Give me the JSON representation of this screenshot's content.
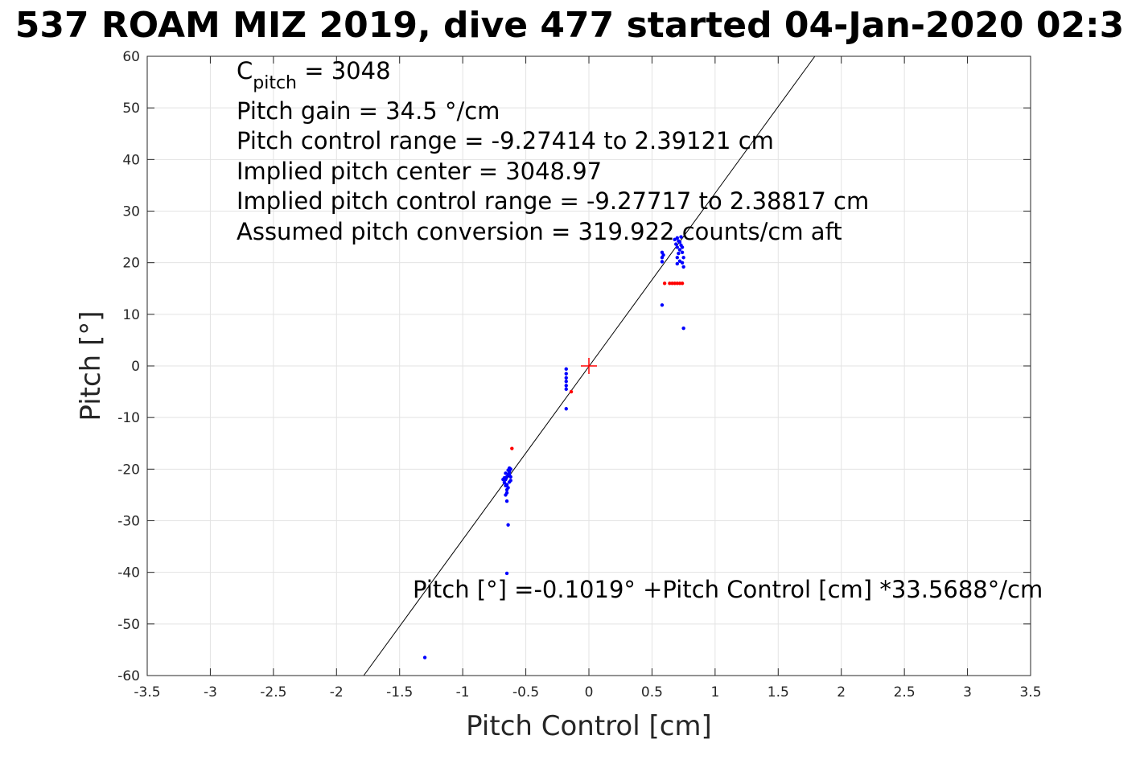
{
  "chart_data": {
    "type": "scatter",
    "title": "537 ROAM MIZ 2019, dive 477 started 04-Jan-2020 02:3",
    "xlabel": "Pitch Control [cm]",
    "ylabel": "Pitch [°]",
    "xlim": [
      -3.5,
      3.5
    ],
    "ylim": [
      -60,
      60
    ],
    "xticks": [
      -3.5,
      -3,
      -2.5,
      -2,
      -1.5,
      -1,
      -0.5,
      0,
      0.5,
      1,
      1.5,
      2,
      2.5,
      3,
      3.5
    ],
    "xtick_labels": [
      "-3.5",
      "-3",
      "-2.5",
      "-2",
      "-1.5",
      "-1",
      "-0.5",
      "0",
      "0.5",
      "1",
      "1.5",
      "2",
      "2.5",
      "3",
      "3.5"
    ],
    "yticks": [
      -60,
      -50,
      -40,
      -30,
      -20,
      -10,
      0,
      10,
      20,
      30,
      40,
      50,
      60
    ],
    "ytick_labels": [
      "-60",
      "-50",
      "-40",
      "-30",
      "-20",
      "-10",
      "0",
      "10",
      "20",
      "30",
      "40",
      "50",
      "60"
    ],
    "grid": true,
    "annotations": {
      "c_pitch_main": "C",
      "c_pitch_sub": "pitch",
      "c_pitch_value": " = 3048",
      "lines": [
        "Pitch gain = 34.5 °/cm",
        "Pitch control range = -9.27414 to 2.39121 cm",
        "Implied pitch center = 3048.97",
        "Implied pitch control range = -9.27717 to 2.38817 cm",
        "Assumed pitch conversion = 319.922 counts/cm aft"
      ],
      "fit_equation": "Pitch [°] =-0.1019° +Pitch Control [cm] *33.5688°/cm"
    },
    "fit_line": {
      "intercept": -0.1019,
      "slope": 33.5688,
      "color": "#000000"
    },
    "center_marker": {
      "x": 0,
      "y": 0,
      "color": "#ff0000"
    },
    "series": [
      {
        "color": "#0000ff",
        "points": [
          [
            -1.3,
            -56.5
          ],
          [
            -0.65,
            -40.2
          ],
          [
            -0.64,
            -30.8
          ],
          [
            -0.65,
            -26.2
          ],
          [
            -0.66,
            -25.0
          ],
          [
            -0.65,
            -24.0
          ],
          [
            -0.66,
            -23.2
          ],
          [
            -0.67,
            -22.6
          ],
          [
            -0.68,
            -22.0
          ],
          [
            -0.66,
            -22.0
          ],
          [
            -0.65,
            -21.5
          ],
          [
            -0.64,
            -21.0
          ],
          [
            -0.63,
            -20.5
          ],
          [
            -0.62,
            -20.0
          ],
          [
            -0.63,
            -19.8
          ],
          [
            -0.62,
            -21.5
          ],
          [
            -0.63,
            -22.5
          ],
          [
            -0.64,
            -23.6
          ],
          [
            -0.65,
            -24.6
          ],
          [
            -0.66,
            -20.8
          ],
          [
            -0.67,
            -21.7
          ],
          [
            -0.62,
            -22.2
          ],
          [
            -0.64,
            -20.2
          ],
          [
            -0.65,
            -23.0
          ],
          [
            -0.63,
            -21.0
          ],
          [
            -0.18,
            -8.3
          ],
          [
            -0.18,
            -4.5
          ],
          [
            -0.18,
            -3.8
          ],
          [
            -0.18,
            -3.0
          ],
          [
            -0.18,
            -2.3
          ],
          [
            -0.18,
            -1.5
          ],
          [
            -0.18,
            -0.6
          ],
          [
            0.58,
            11.8
          ],
          [
            0.58,
            20.2
          ],
          [
            0.58,
            21.0
          ],
          [
            0.59,
            21.5
          ],
          [
            0.58,
            22.0
          ],
          [
            0.7,
            19.8
          ],
          [
            0.72,
            20.3
          ],
          [
            0.7,
            21.0
          ],
          [
            0.71,
            21.8
          ],
          [
            0.72,
            22.5
          ],
          [
            0.7,
            23.0
          ],
          [
            0.69,
            23.6
          ],
          [
            0.71,
            24.2
          ],
          [
            0.7,
            24.8
          ],
          [
            0.73,
            25.0
          ],
          [
            0.74,
            22.0
          ],
          [
            0.75,
            21.0
          ],
          [
            0.74,
            20.0
          ],
          [
            0.75,
            19.2
          ],
          [
            0.73,
            23.4
          ],
          [
            0.68,
            24.5
          ],
          [
            0.72,
            24.0
          ],
          [
            0.74,
            23.0
          ],
          [
            0.75,
            7.3
          ]
        ]
      },
      {
        "color": "#ff0000",
        "points": [
          [
            -0.61,
            -16.0
          ],
          [
            -0.14,
            -5.0
          ],
          [
            0.6,
            16.0
          ],
          [
            0.64,
            16.0
          ],
          [
            0.66,
            16.0
          ],
          [
            0.68,
            16.0
          ],
          [
            0.7,
            16.0
          ],
          [
            0.72,
            16.0
          ],
          [
            0.74,
            16.0
          ]
        ]
      }
    ]
  }
}
